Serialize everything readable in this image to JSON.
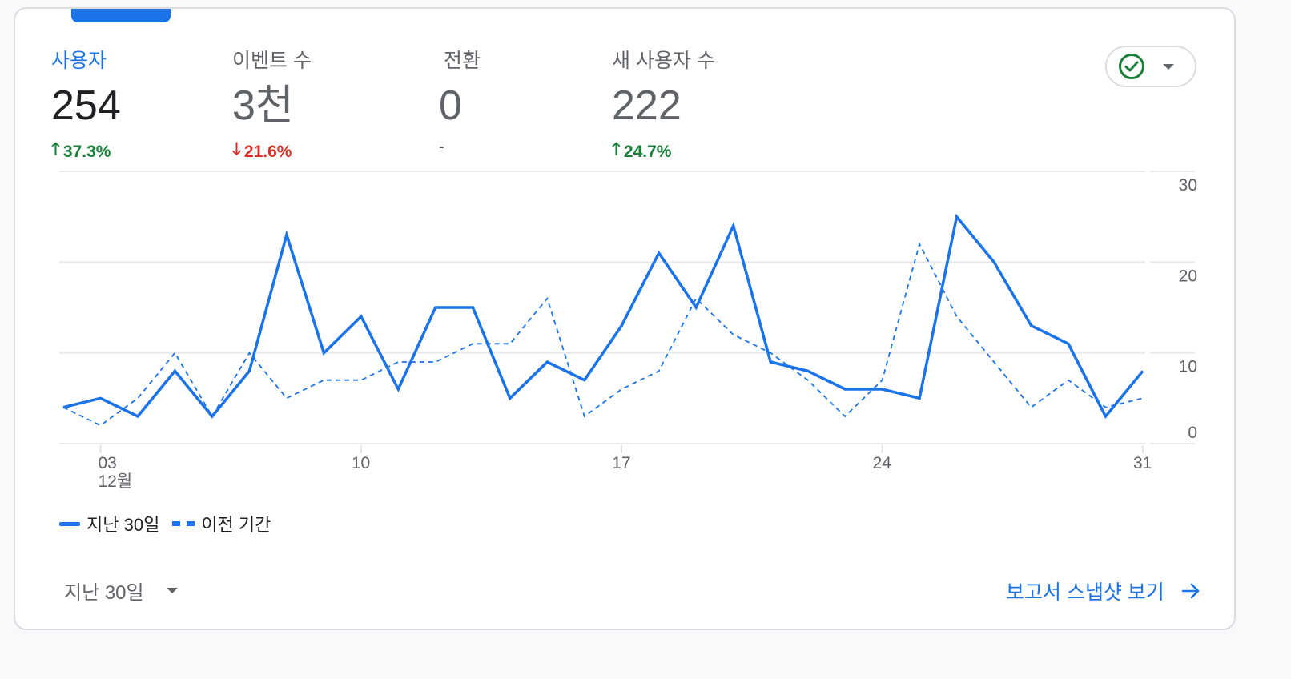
{
  "metrics": [
    {
      "label": "사용자",
      "value": "254",
      "change": "37.3%",
      "direction": "up",
      "active": true
    },
    {
      "label": "이벤트 수",
      "value": "3천",
      "change": "21.6%",
      "direction": "down",
      "active": false
    },
    {
      "label": "전환",
      "value": "0",
      "change": "-",
      "direction": "none",
      "active": false
    },
    {
      "label": "새 사용자 수",
      "value": "222",
      "change": "24.7%",
      "direction": "up",
      "active": false
    }
  ],
  "compare_button": {
    "icon": "check-circle-icon",
    "dropdown": "caret-down-icon"
  },
  "legend": {
    "current": "지난 30일",
    "previous": "이전 기간"
  },
  "period_select": {
    "label": "지난 30일"
  },
  "snapshot_link": {
    "label": "보고서 스냅샷 보기"
  },
  "colors": {
    "accent": "#1a73e8",
    "up": "#188038",
    "down": "#d93025",
    "grid": "#e8eaed"
  },
  "chart_data": {
    "type": "line",
    "title": "사용자",
    "xlabel": "",
    "ylabel": "",
    "ylim": [
      0,
      30
    ],
    "yticks": [
      0,
      10,
      20,
      30
    ],
    "y_axis_position": "right",
    "grid": true,
    "x": [
      2,
      3,
      4,
      5,
      6,
      7,
      8,
      9,
      10,
      11,
      12,
      13,
      14,
      15,
      16,
      17,
      18,
      19,
      20,
      21,
      22,
      23,
      24,
      25,
      26,
      27,
      28,
      29,
      30,
      31
    ],
    "x_tick_labels": [
      {
        "day": 3,
        "label": "03",
        "sublabel": "12월"
      },
      {
        "day": 10,
        "label": "10"
      },
      {
        "day": 17,
        "label": "17"
      },
      {
        "day": 24,
        "label": "24"
      },
      {
        "day": 31,
        "label": "31"
      }
    ],
    "series": [
      {
        "name": "지난 30일",
        "style": "solid",
        "values": [
          4,
          5,
          3,
          8,
          3,
          8,
          23,
          10,
          14,
          6,
          15,
          15,
          5,
          9,
          7,
          13,
          21,
          15,
          24,
          9,
          8,
          6,
          6,
          5,
          25,
          20,
          13,
          11,
          3,
          8
        ]
      },
      {
        "name": "이전 기간",
        "style": "dashed",
        "values": [
          4,
          2,
          5,
          10,
          3,
          10,
          5,
          7,
          7,
          9,
          9,
          11,
          11,
          16,
          3,
          6,
          8,
          16,
          12,
          10,
          7,
          3,
          7,
          22,
          14,
          9,
          4,
          7,
          4,
          5
        ]
      }
    ],
    "legend_position": "bottom-left"
  }
}
